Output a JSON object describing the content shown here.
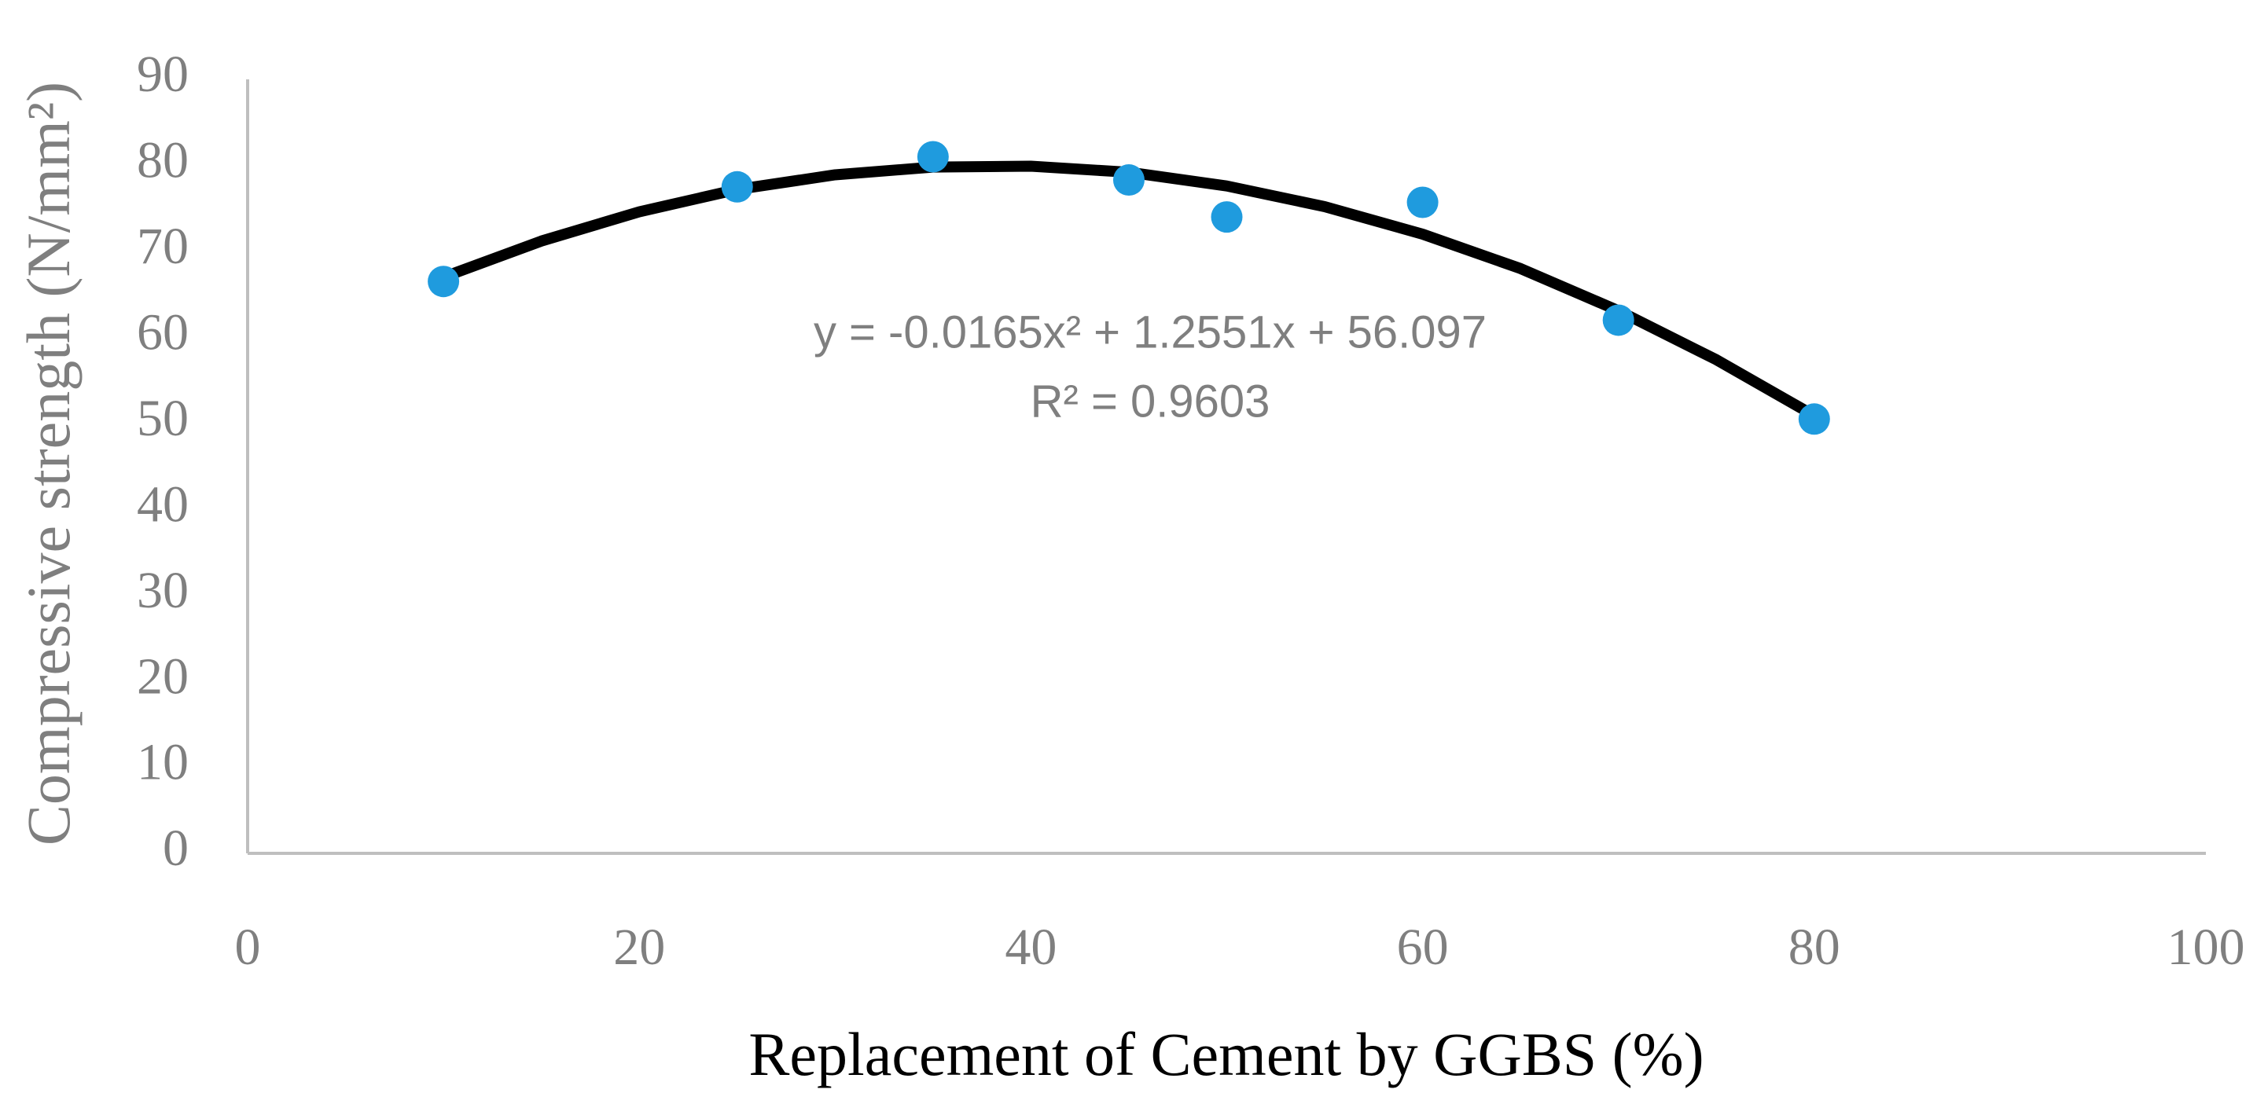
{
  "chart_data": {
    "type": "scatter",
    "x_label": "Replacement of Cement by GGBS (%)",
    "y_label": "Compressive strength (N/mm²)",
    "series": [
      {
        "color": "#1f9bde",
        "x": [
          10,
          25,
          35,
          45,
          50,
          60,
          70,
          80
        ],
        "values": [
          66.5,
          77.5,
          81,
          78.3,
          74,
          75.7,
          62,
          50.5
        ]
      }
    ],
    "trendline": {
      "color": "#000000",
      "x": [
        10,
        15,
        20,
        25,
        30,
        35,
        40,
        45,
        50,
        55,
        60,
        65,
        70,
        75,
        80
      ],
      "values": [
        67.0,
        71.2,
        74.6,
        77.2,
        78.9,
        79.8,
        79.9,
        79.2,
        77.6,
        75.2,
        72.0,
        68.0,
        63.1,
        57.4,
        50.9
      ]
    },
    "annotations": [
      "y = -0.0165x² + 1.2551x + 56.097",
      "R² = 0.9603"
    ],
    "xlim": [
      0,
      100
    ],
    "xticks": [
      0,
      20,
      40,
      60,
      80,
      100
    ],
    "ylim": [
      0,
      90
    ],
    "yticks": [
      0,
      10,
      20,
      30,
      40,
      50,
      60,
      70,
      80,
      90
    ],
    "grid": false
  }
}
